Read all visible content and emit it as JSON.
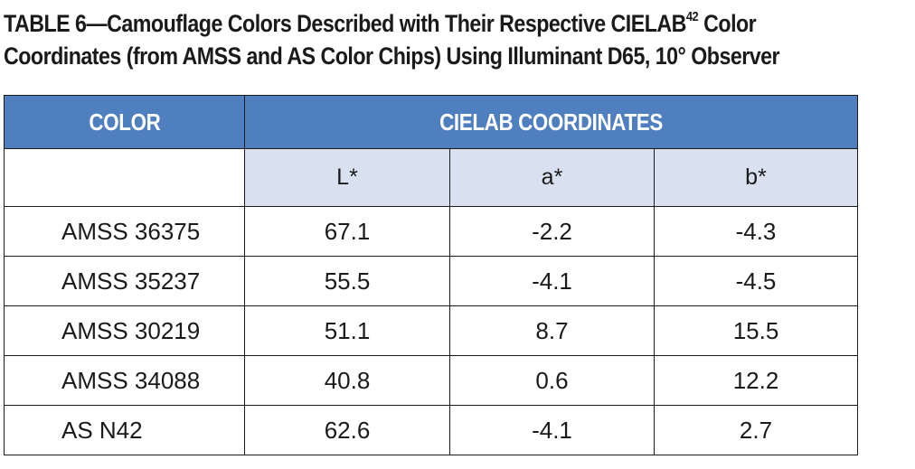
{
  "caption": {
    "line1_prefix": "TABLE 6—Camouflage Colors Described with Their Respective CIELAB",
    "line1_sup": "42",
    "line1_suffix": " Color",
    "line2": "Coordinates (from AMSS and AS Color Chips) Using Illuminant D65, 10° Observer"
  },
  "table": {
    "header_color": "COLOR",
    "header_coords": "CIELAB COORDINATES",
    "sub_headers": [
      "L*",
      "a*",
      "b*"
    ],
    "rows": [
      {
        "color": "AMSS 36375",
        "L": "67.1",
        "a": "-2.2",
        "b": "-4.3"
      },
      {
        "color": "AMSS 35237",
        "L": "55.5",
        "a": "-4.1",
        "b": "-4.5"
      },
      {
        "color": "AMSS 30219",
        "L": "51.1",
        "a": "8.7",
        "b": "15.5"
      },
      {
        "color": "AMSS 34088",
        "L": "40.8",
        "a": "0.6",
        "b": "12.2"
      },
      {
        "color": "AS N42",
        "L": "62.6",
        "a": "-4.1",
        "b": "2.7"
      }
    ]
  },
  "colors": {
    "header_blue": "#4f7fbf",
    "subheader_lavender": "#d9e0f0",
    "text": "#1a1a1a"
  }
}
